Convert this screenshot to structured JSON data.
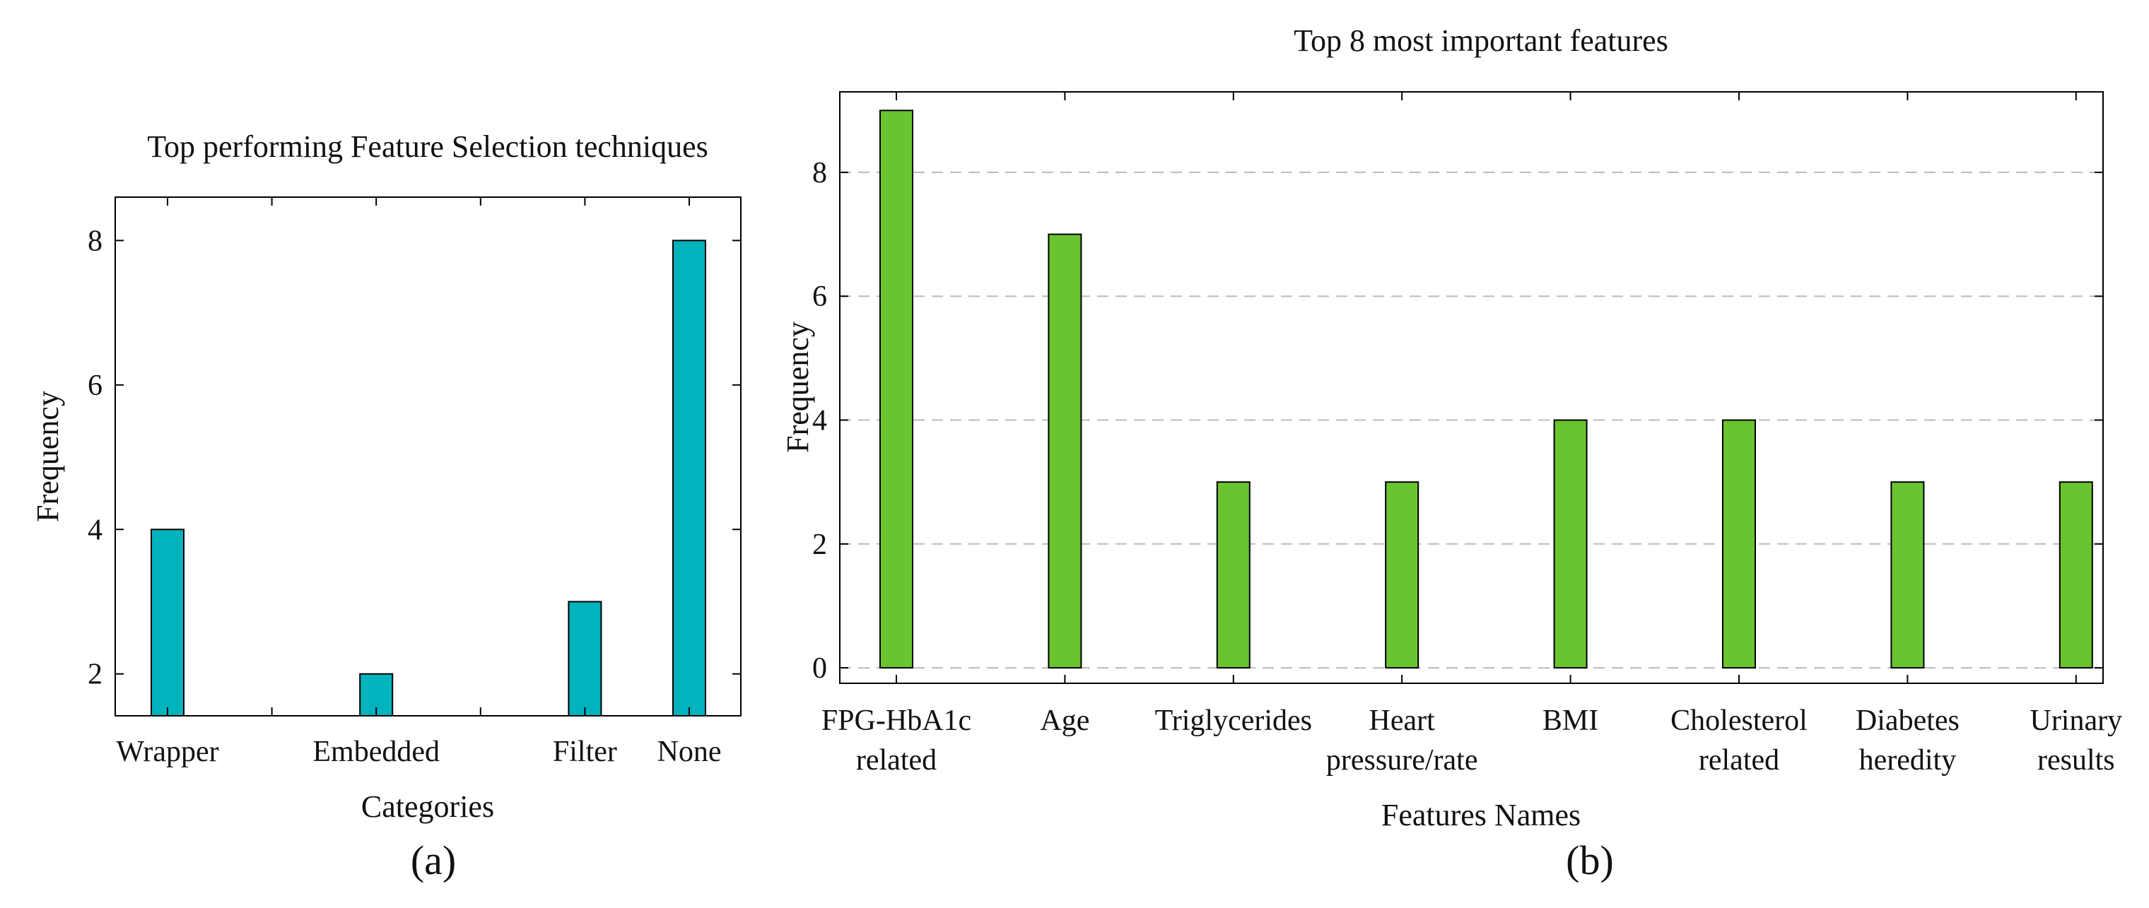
{
  "chart_data": [
    {
      "type": "bar",
      "title": "Top performing Feature Selection techniques",
      "xlabel": "Categories",
      "ylabel": "Frequency",
      "panel_label": "(a)",
      "categories": [
        "Wrapper",
        "Embedded",
        "Filter",
        "None"
      ],
      "category_positions": [
        0,
        2,
        4,
        5
      ],
      "values": [
        4,
        2,
        3,
        8
      ],
      "yticks": [
        2,
        4,
        6,
        8
      ],
      "ylim": [
        1.42,
        8.6
      ],
      "grid": false,
      "bar_color": "#00b3bd"
    },
    {
      "type": "bar",
      "title": "Top 8 most important features",
      "xlabel": "Features Names",
      "ylabel": "Frequency",
      "panel_label": "(b)",
      "categories": [
        [
          "FPG-HbA1c",
          "related"
        ],
        [
          "Age"
        ],
        [
          "Triglycerides"
        ],
        [
          "Heart",
          "pressure/rate"
        ],
        [
          "BMI"
        ],
        [
          "Cholesterol",
          "related"
        ],
        [
          "Diabetes",
          "heredity"
        ],
        [
          "Urinary",
          "results"
        ]
      ],
      "values": [
        9,
        7,
        3,
        3,
        4,
        4,
        3,
        3
      ],
      "yticks": [
        0,
        2,
        4,
        6,
        8
      ],
      "ylim": [
        -0.25,
        9.3
      ],
      "grid": true,
      "bar_color": "#6ac42f"
    }
  ]
}
